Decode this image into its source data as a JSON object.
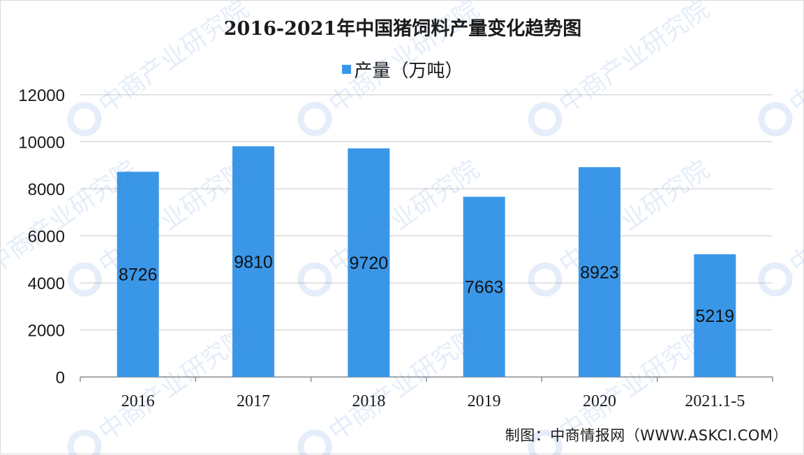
{
  "chart_data": {
    "type": "bar",
    "title": "2016-2021年中国猪饲料产量变化趋势图",
    "categories": [
      "2016",
      "2017",
      "2018",
      "2019",
      "2020",
      "2021.1-5"
    ],
    "series": [
      {
        "name": "产量（万吨）",
        "values": [
          8726,
          9810,
          9720,
          7663,
          8923,
          5219
        ],
        "color": "#3a97e8"
      }
    ],
    "data_labels": [
      "8726",
      "9810",
      "9720",
      "7663",
      "8923",
      "5219"
    ],
    "ylim": [
      0,
      12000
    ],
    "yticks": [
      "0",
      "2000",
      "4000",
      "6000",
      "8000",
      "10000",
      "12000"
    ],
    "grid": true,
    "legend_position": "top-center"
  },
  "source": "制图：中商情报网（WWW.ASKCI.COM）",
  "watermark": "中商产业研究院"
}
